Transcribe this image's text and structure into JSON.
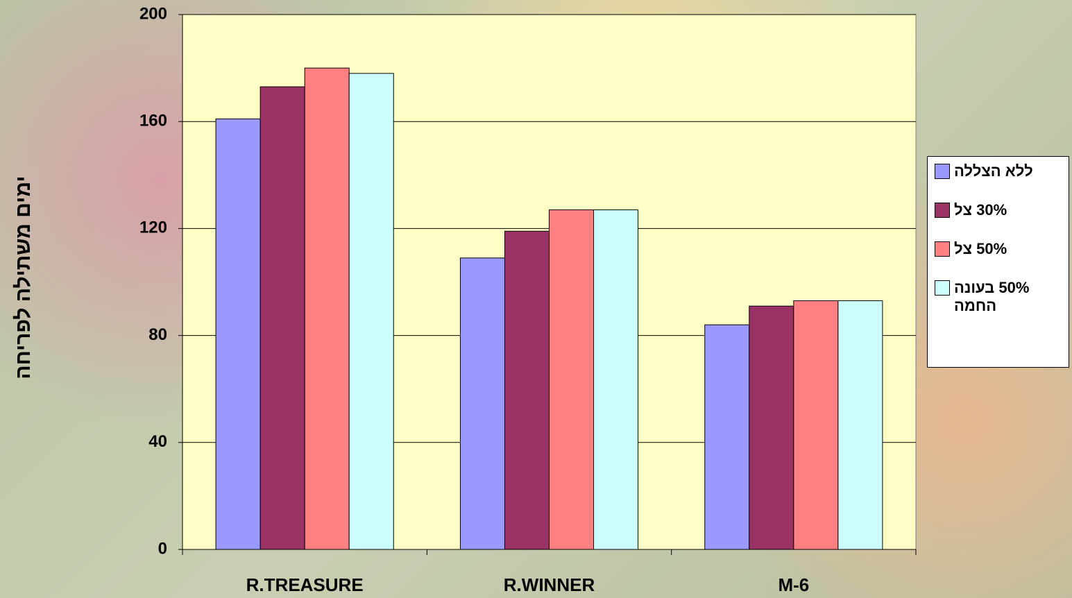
{
  "chart_data": {
    "type": "bar",
    "y_axis_label": "ימים משתילה לפריחה",
    "categories": [
      "R.TREASURE",
      "R.WINNER",
      "M-6"
    ],
    "series": [
      {
        "name": "ללא הצללה",
        "color": "#9999ff",
        "values": [
          161,
          109,
          84
        ]
      },
      {
        "name": "30% צל",
        "color": "#993366",
        "values": [
          173,
          119,
          91
        ]
      },
      {
        "name": "50% צל",
        "color": "#ff8080",
        "values": [
          180,
          127,
          93
        ]
      },
      {
        "name": "50% בעונה החמה",
        "color": "#ccffff",
        "values": [
          178,
          127,
          93
        ]
      }
    ],
    "ylim": [
      0,
      200
    ],
    "yticks": [
      0,
      40,
      80,
      120,
      160,
      200
    ],
    "grid": true,
    "legend": "right"
  }
}
